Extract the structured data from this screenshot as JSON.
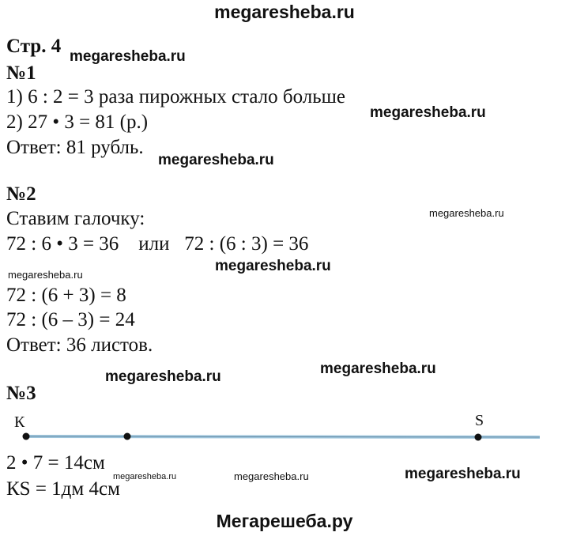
{
  "header": {
    "site": "megaresheba.ru",
    "page": "Стр. 4"
  },
  "sections": [
    {
      "title": "№1",
      "lines": [
        "1) 6 : 2 = 3 раза пирожных стало больше",
        "2) 27 • 3 = 81 (р.)",
        "Ответ: 81 рубль."
      ]
    },
    {
      "title": "№2",
      "lines": [
        "Ставим галочку:",
        "72 : 6 • 3 = 36    или   72 : (6 : 3) = 36",
        "72 : (6 + 3) = 8",
        "72 : (6 – 3) = 24",
        "Ответ: 36 листов."
      ]
    },
    {
      "title": "№3",
      "points": [
        "К",
        "S"
      ],
      "lines": [
        "2 • 7 = 14см",
        "КS = 1дм 4см"
      ]
    }
  ],
  "watermark": "megaresheba.ru",
  "footer": "Мегарешеба.ру"
}
